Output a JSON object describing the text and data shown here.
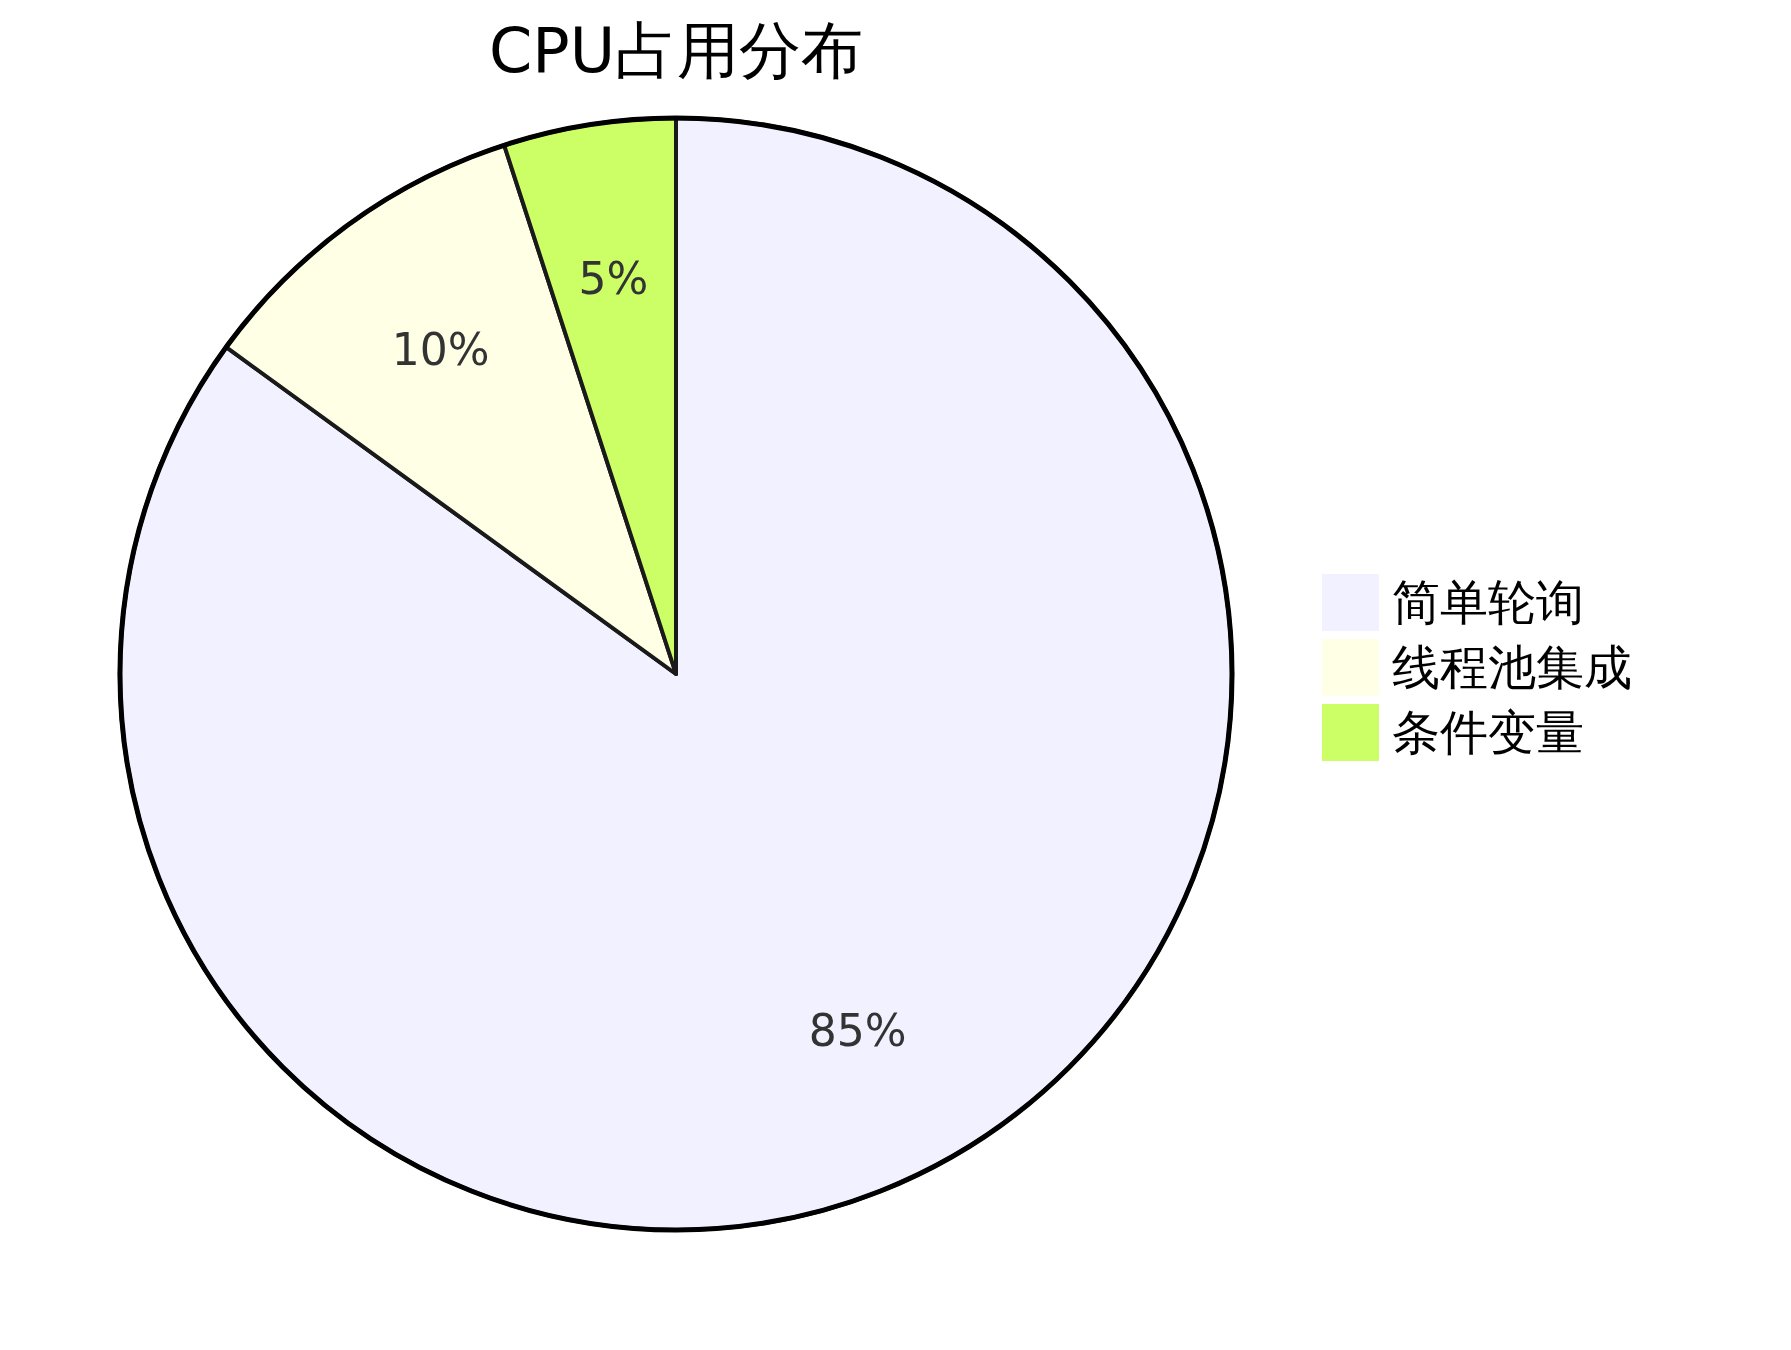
{
  "chart_data": {
    "type": "pie",
    "title": "CPU占用分布",
    "categories": [
      "简单轮询",
      "线程池集成",
      "条件变量"
    ],
    "values": [
      85,
      10,
      5
    ],
    "colors": [
      "#f1f1ff",
      "#ffffe6",
      "#ccff66"
    ],
    "value_labels": [
      "85%",
      "10%",
      "5%"
    ],
    "legend": "right"
  }
}
